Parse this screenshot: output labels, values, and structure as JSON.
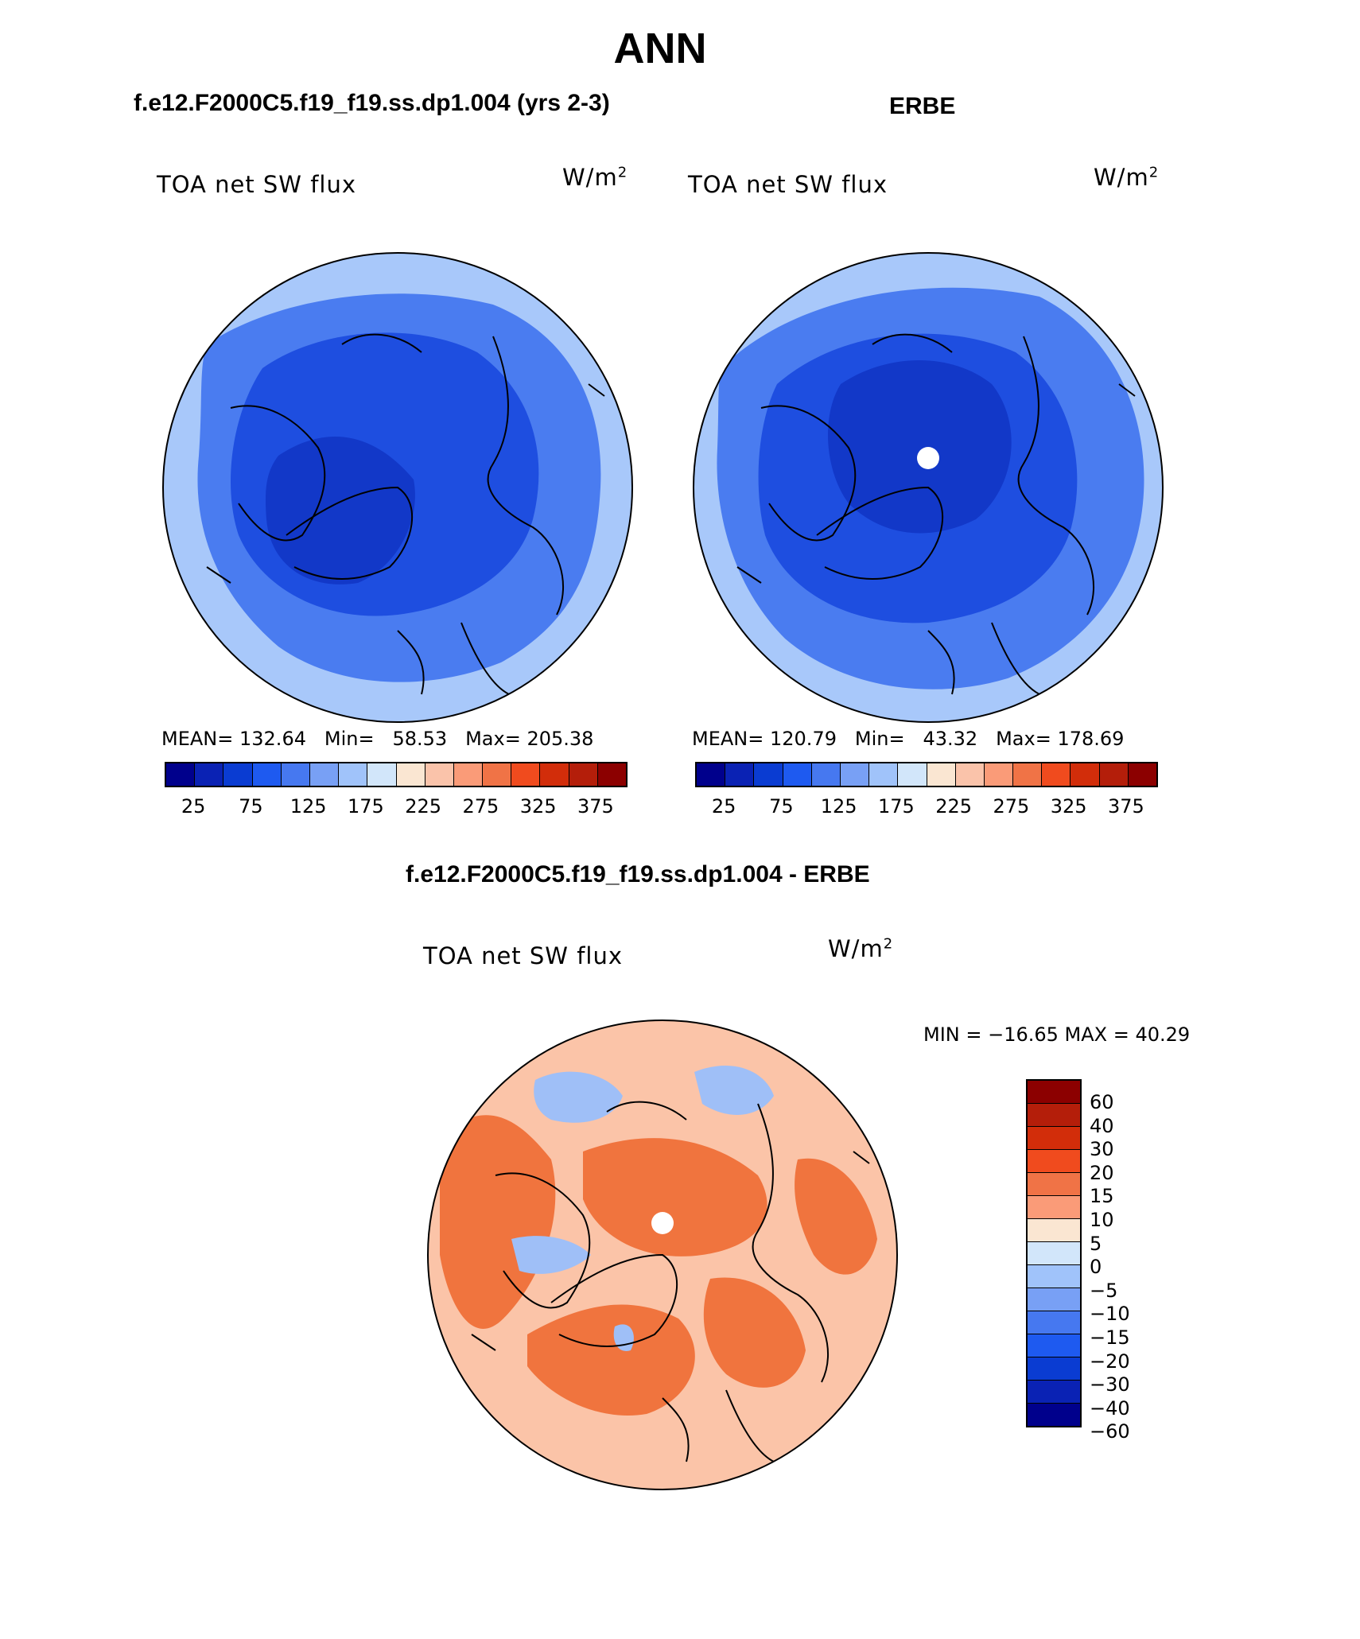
{
  "page": {
    "title": "ANN",
    "left_panel_title": "f.e12.F2000C5.f19_f19.ss.dp1.004 (yrs 2-3)",
    "right_panel_title": "ERBE",
    "diff_panel_title": "f.e12.F2000C5.f19_f19.ss.dp1.004 - ERBE"
  },
  "panels": {
    "model": {
      "variable": "TOA net SW flux",
      "unit_base": "W/m",
      "unit_exp": "2",
      "mean_label": "MEAN=",
      "mean": "132.64",
      "min_label": "Min=",
      "min": "58.53",
      "max_label": "Max=",
      "max": "205.38"
    },
    "obs": {
      "variable": "TOA net SW flux",
      "unit_base": "W/m",
      "unit_exp": "2",
      "mean_label": "MEAN=",
      "mean": "120.79",
      "min_label": "Min=",
      "min": "43.32",
      "max_label": "Max=",
      "max": "178.69"
    },
    "diff": {
      "variable": "TOA net SW flux",
      "unit_base": "W/m",
      "unit_exp": "2",
      "minmax_text": "MIN = −16.65 MAX =  40.29"
    }
  },
  "colorbars": {
    "abs": {
      "colors": [
        "#00008c",
        "#0a22b4",
        "#0a3cd2",
        "#1e5af0",
        "#4678f0",
        "#78a0f5",
        "#a0c3fa",
        "#d2e6fa",
        "#fae6d2",
        "#fac3aa",
        "#fa9b78",
        "#f07346",
        "#f04b1e",
        "#d22d0a",
        "#b41e0a",
        "#8c0000"
      ],
      "ticks": [
        "25",
        "75",
        "125",
        "175",
        "225",
        "275",
        "325",
        "375"
      ]
    },
    "diff": {
      "colors": [
        "#8c0000",
        "#b41e0a",
        "#d22d0a",
        "#f04b1e",
        "#f07346",
        "#fa9b78",
        "#fae6d2",
        "#d2e6fa",
        "#a0c3fa",
        "#78a0f5",
        "#4678f0",
        "#1e5af0",
        "#0a3cd2",
        "#0a22b4",
        "#00008c"
      ],
      "ticks": [
        "60",
        "40",
        "30",
        "20",
        "15",
        "10",
        "5",
        "0",
        "−5",
        "−10",
        "−15",
        "−20",
        "−30",
        "−40",
        "−60"
      ]
    }
  },
  "map_colors": {
    "abs_low": "#1e4ee0",
    "abs_mid": "#4a7cf0",
    "abs_high": "#a8c8fa",
    "diff_pos": "#f0743e",
    "diff_weak": "#fbc4a8",
    "diff_neg": "#9fbff7",
    "missing": "#ffffff",
    "coast": "#000000"
  }
}
